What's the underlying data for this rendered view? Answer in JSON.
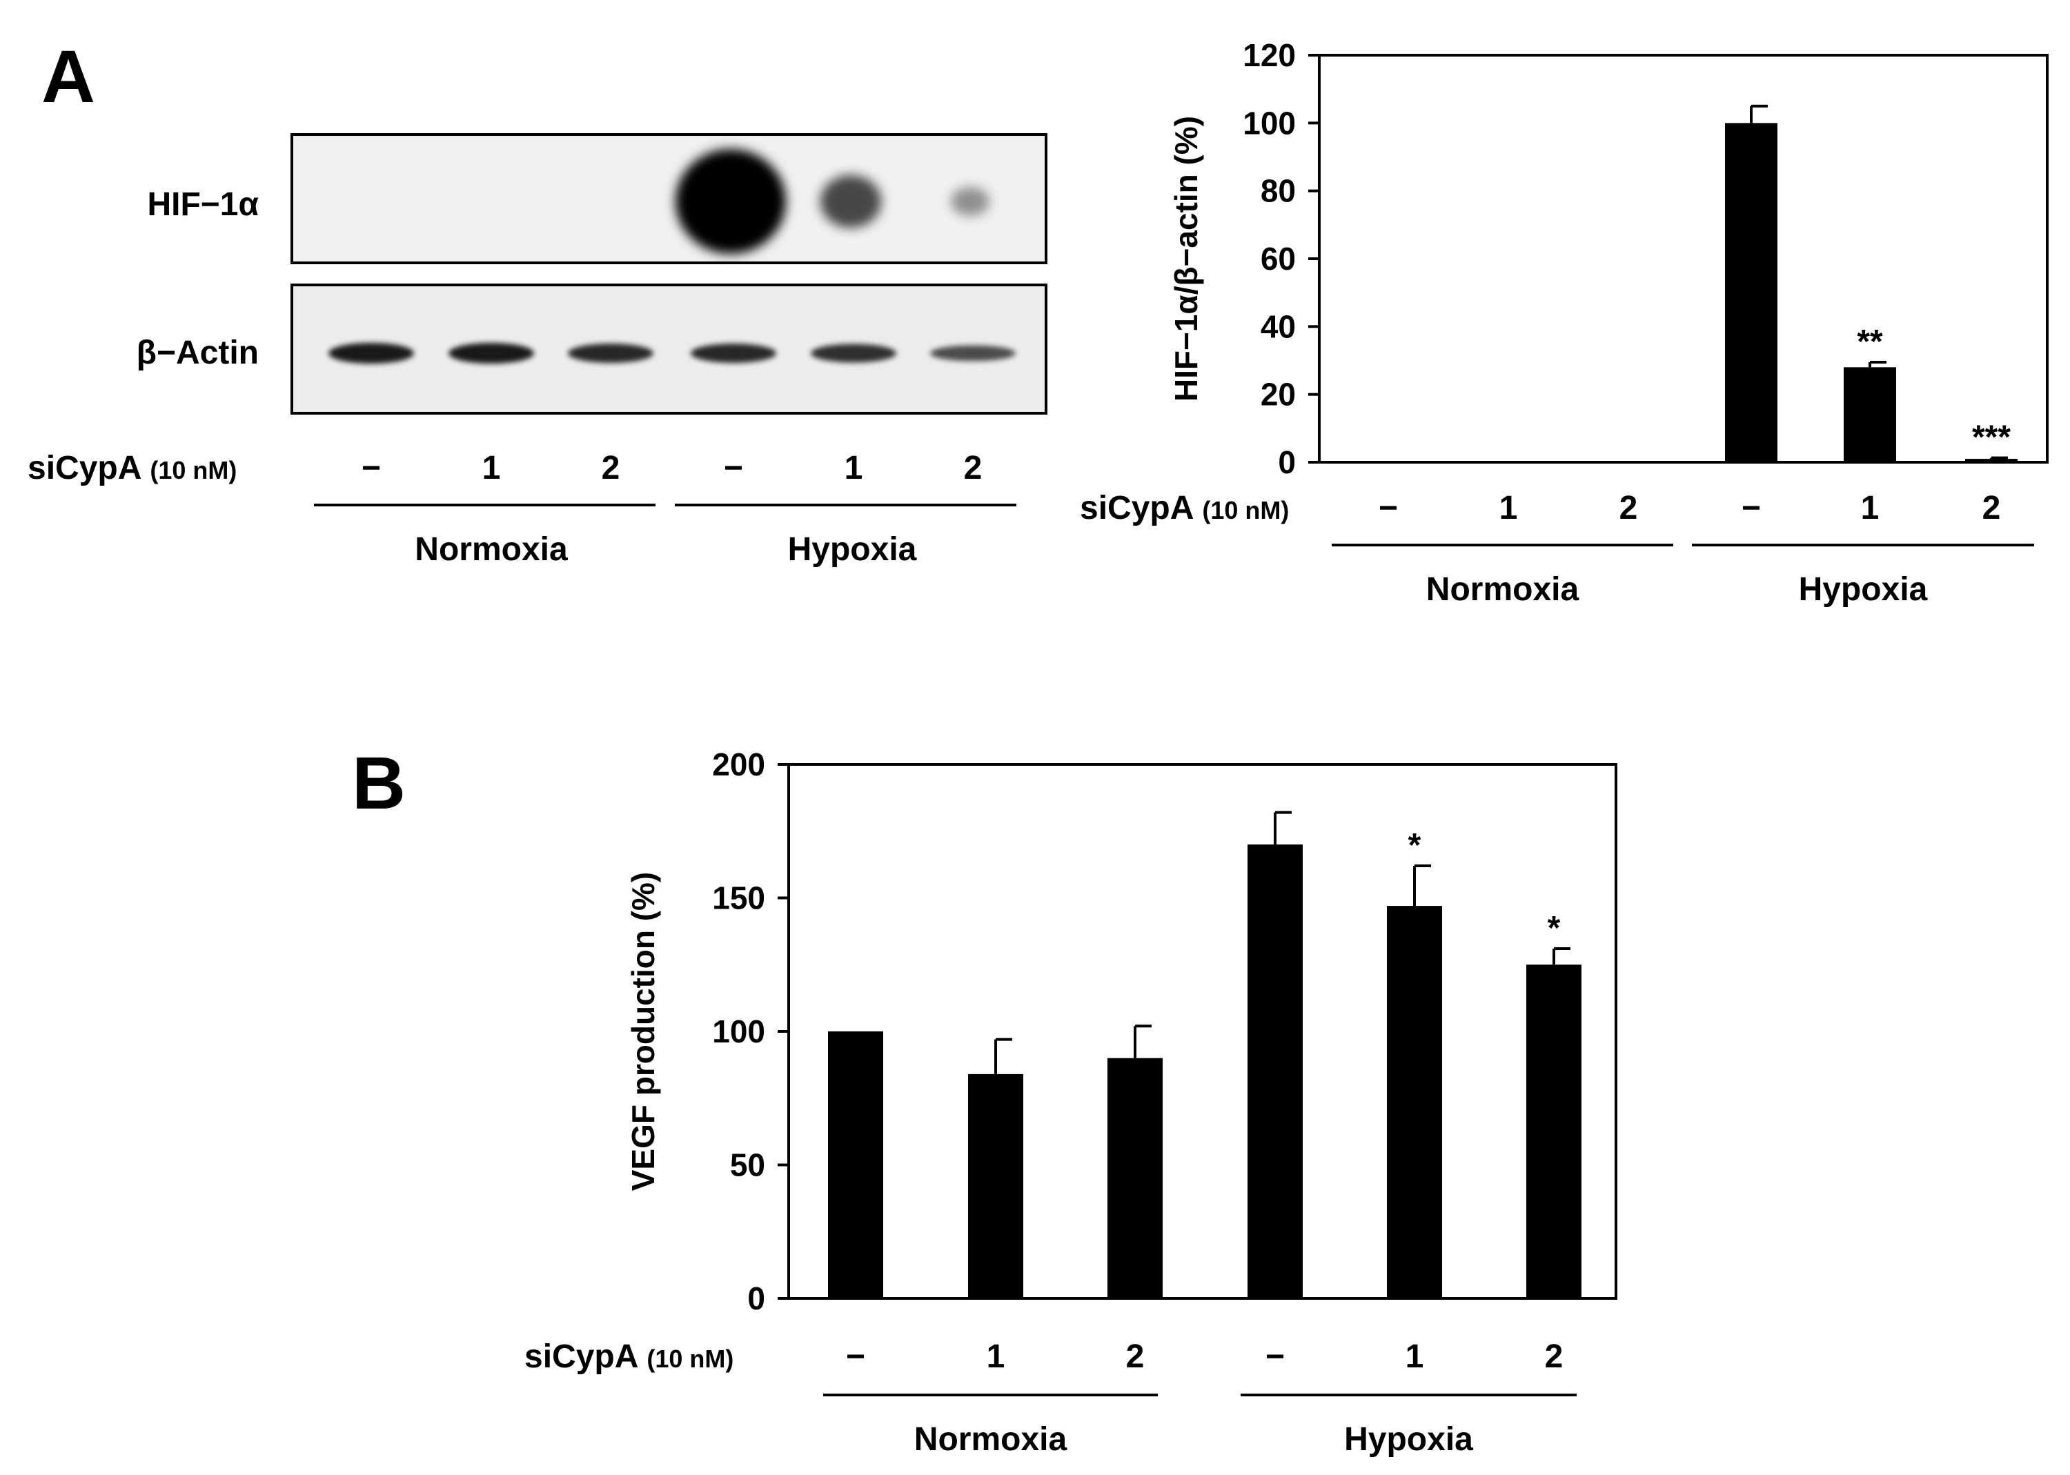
{
  "panel_labels": {
    "a": "A",
    "b": "B"
  },
  "western_blot": {
    "row_labels": [
      "HIF−1α",
      "β−Actin"
    ],
    "sicypa_label": "siCypA",
    "sicypa_unit": "(10 nM)",
    "lane_labels": [
      "−",
      "1",
      "2",
      "−",
      "1",
      "2"
    ],
    "group_labels": [
      "Normoxia",
      "Hypoxia"
    ],
    "hif_band_intensity": [
      0,
      0,
      0,
      1.0,
      0.35,
      0.05
    ],
    "actin_band_intensity": [
      0.9,
      0.9,
      0.8,
      0.8,
      0.75,
      0.55
    ]
  },
  "chart_data": [
    {
      "type": "bar",
      "panel": "A",
      "categories": [
        "−",
        "1",
        "2",
        "−",
        "1",
        "2"
      ],
      "category_groups": [
        "Normoxia",
        "Hypoxia"
      ],
      "values": [
        0,
        0,
        0,
        100,
        28,
        1
      ],
      "errors": [
        0,
        0,
        0,
        5,
        1.5,
        0.3
      ],
      "significance": [
        "",
        "",
        "",
        "",
        "**",
        "***"
      ],
      "ylabel": "HIF−1α/β−actin (%)",
      "ylim": [
        0,
        120
      ],
      "yticks": [
        0,
        20,
        40,
        60,
        80,
        100,
        120
      ],
      "xlabel_prefix": "siCypA",
      "xlabel_unit": "(10 nM)",
      "bar_color": "#000000",
      "grid": false
    },
    {
      "type": "bar",
      "panel": "B",
      "categories": [
        "−",
        "1",
        "2",
        "−",
        "1",
        "2"
      ],
      "category_groups": [
        "Normoxia",
        "Hypoxia"
      ],
      "values": [
        100,
        84,
        90,
        170,
        147,
        125
      ],
      "errors": [
        0,
        13,
        12,
        12,
        15,
        6
      ],
      "significance": [
        "",
        "",
        "",
        "",
        "*",
        "*"
      ],
      "ylabel": "VEGF production (%)",
      "ylim": [
        0,
        200
      ],
      "yticks": [
        0,
        50,
        100,
        150,
        200
      ],
      "xlabel_prefix": "siCypA",
      "xlabel_unit": "(10 nM)",
      "bar_color": "#000000",
      "grid": false
    }
  ]
}
